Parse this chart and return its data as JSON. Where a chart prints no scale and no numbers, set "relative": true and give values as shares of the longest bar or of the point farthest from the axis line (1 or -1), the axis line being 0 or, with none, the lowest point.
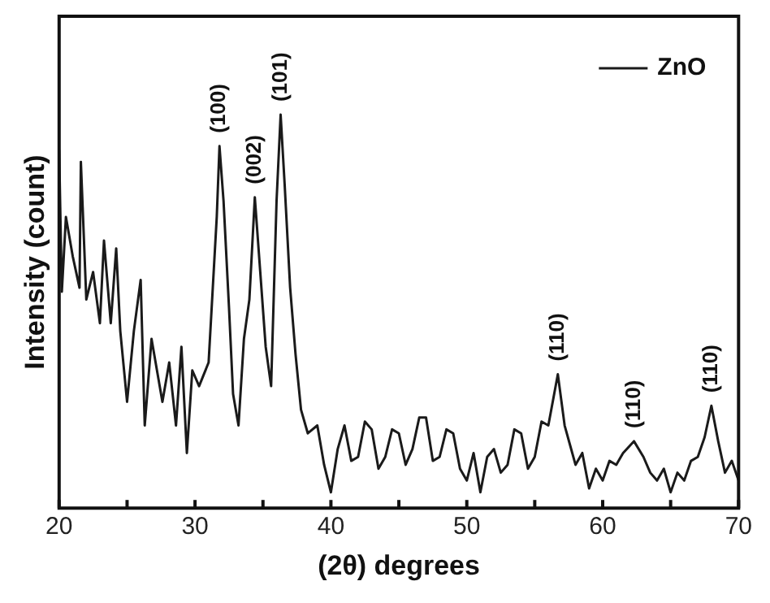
{
  "chart_data": {
    "type": "line",
    "relative": true,
    "xlabel": "(2θ) degrees",
    "ylabel": "Intensity (count)",
    "legend": "top right",
    "marker": "none",
    "line_style": "solid",
    "grid": false,
    "xlim": [
      20,
      70
    ],
    "xticks": [
      20,
      {
        "value": 25,
        "label": null
      },
      30,
      {
        "value": 35,
        "label": null
      },
      40,
      {
        "value": 45,
        "label": null
      },
      50,
      {
        "value": 55,
        "label": null
      },
      60,
      {
        "value": 65,
        "label": null
      },
      70
    ],
    "series": [
      {
        "name": "ZnO",
        "color": "#1a1a1a",
        "x": [
          20,
          20.2,
          20.5,
          21,
          21.5,
          21.6,
          22,
          22.5,
          23,
          23.3,
          23.8,
          24.2,
          24.5,
          25,
          25.5,
          26,
          26.3,
          26.8,
          27.2,
          27.6,
          28.1,
          28.6,
          29,
          29.4,
          29.8,
          30.3,
          31,
          31.6,
          31.8,
          32.1,
          32.5,
          32.8,
          33.2,
          33.6,
          34,
          34.4,
          34.8,
          35.2,
          35.6,
          36,
          36.3,
          36.6,
          37,
          37.4,
          37.8,
          38.3,
          39,
          39.5,
          40,
          40.5,
          41,
          41.5,
          42,
          42.5,
          43,
          43.5,
          44,
          44.5,
          45,
          45.5,
          46,
          46.5,
          47,
          47.5,
          48,
          48.5,
          49,
          49.5,
          50,
          50.5,
          51,
          51.5,
          52,
          52.5,
          53,
          53.5,
          54,
          54.5,
          55,
          55.5,
          56,
          56.7,
          57.2,
          57.6,
          58,
          58.5,
          59,
          59.5,
          60,
          60.5,
          61,
          61.5,
          62.3,
          63,
          63.5,
          64,
          64.5,
          65,
          65.5,
          66,
          66.5,
          67,
          67.5,
          68,
          68.5,
          69,
          69.5,
          70
        ],
        "values": [
          0.91,
          0.55,
          0.74,
          0.64,
          0.56,
          0.88,
          0.53,
          0.6,
          0.47,
          0.68,
          0.47,
          0.66,
          0.45,
          0.27,
          0.45,
          0.58,
          0.21,
          0.43,
          0.35,
          0.27,
          0.37,
          0.21,
          0.41,
          0.14,
          0.35,
          0.31,
          0.37,
          0.74,
          0.92,
          0.78,
          0.51,
          0.29,
          0.21,
          0.43,
          0.53,
          0.79,
          0.6,
          0.41,
          0.31,
          0.78,
          1,
          0.82,
          0.56,
          0.39,
          0.25,
          0.19,
          0.21,
          0.11,
          0.04,
          0.15,
          0.21,
          0.12,
          0.13,
          0.22,
          0.2,
          0.1,
          0.13,
          0.2,
          0.19,
          0.11,
          0.15,
          0.23,
          0.23,
          0.12,
          0.13,
          0.2,
          0.19,
          0.1,
          0.07,
          0.14,
          0.04,
          0.13,
          0.15,
          0.09,
          0.11,
          0.2,
          0.19,
          0.1,
          0.13,
          0.22,
          0.21,
          0.34,
          0.21,
          0.16,
          0.11,
          0.14,
          0.05,
          0.1,
          0.07,
          0.12,
          0.11,
          0.14,
          0.17,
          0.13,
          0.09,
          0.07,
          0.1,
          0.04,
          0.09,
          0.07,
          0.12,
          0.13,
          0.18,
          0.26,
          0.17,
          0.09,
          0.12,
          0.07
        ]
      }
    ],
    "annotations": [
      {
        "text": "(100)",
        "x": 31.8,
        "y": 0.92
      },
      {
        "text": "(002)",
        "x": 34.4,
        "y": 0.79
      },
      {
        "text": "(101)",
        "x": 36.3,
        "y": 1
      },
      {
        "text": "(110)",
        "x": 56.7,
        "y": 0.34
      },
      {
        "text": "(110)",
        "x": 62.3,
        "y": 0.17
      },
      {
        "text": "(110)",
        "x": 68,
        "y": 0.26
      }
    ]
  }
}
